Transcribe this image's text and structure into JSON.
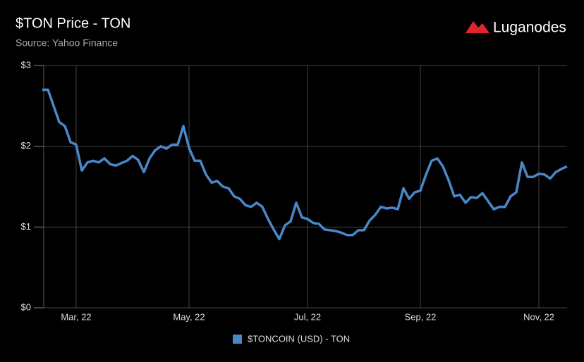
{
  "branding": {
    "name": "Luganodes"
  },
  "chart_data": {
    "type": "line",
    "title": "$TON Price - TON",
    "subtitle": "Source: Yahoo Finance",
    "categories": [
      null,
      null,
      null,
      null,
      null,
      null,
      "Mar, 22",
      null,
      null,
      null,
      null,
      null,
      null,
      null,
      null,
      null,
      null,
      null,
      null,
      null,
      null,
      null,
      null,
      null,
      null,
      null,
      "May, 22",
      null,
      null,
      null,
      null,
      null,
      null,
      null,
      null,
      null,
      null,
      null,
      null,
      null,
      null,
      null,
      null,
      null,
      null,
      null,
      null,
      "Jul, 22",
      null,
      null,
      null,
      null,
      null,
      null,
      null,
      null,
      null,
      null,
      null,
      null,
      null,
      null,
      null,
      null,
      null,
      null,
      null,
      "Sep, 22",
      null,
      null,
      null,
      null,
      null,
      null,
      null,
      null,
      null,
      null,
      null,
      null,
      null,
      null,
      null,
      null,
      null,
      null,
      null,
      null,
      "Nov, 22",
      null,
      null,
      null,
      null,
      null
    ],
    "series": [
      {
        "name": "$TONCOIN (USD) - TON",
        "color": "#4a87c8",
        "values": [
          2.7,
          2.7,
          2.5,
          2.3,
          2.25,
          2.05,
          2.02,
          1.7,
          1.8,
          1.82,
          1.8,
          1.85,
          1.78,
          1.76,
          1.79,
          1.82,
          1.88,
          1.83,
          1.68,
          1.85,
          1.95,
          2.0,
          1.97,
          2.02,
          2.02,
          2.25,
          1.98,
          1.82,
          1.82,
          1.65,
          1.55,
          1.57,
          1.5,
          1.48,
          1.38,
          1.35,
          1.27,
          1.25,
          1.3,
          1.25,
          1.1,
          0.97,
          0.85,
          1.02,
          1.07,
          1.3,
          1.12,
          1.1,
          1.05,
          1.04,
          0.97,
          0.96,
          0.95,
          0.93,
          0.9,
          0.9,
          0.96,
          0.96,
          1.08,
          1.15,
          1.25,
          1.23,
          1.24,
          1.22,
          1.48,
          1.35,
          1.43,
          1.45,
          1.65,
          1.82,
          1.85,
          1.75,
          1.58,
          1.38,
          1.4,
          1.3,
          1.37,
          1.36,
          1.42,
          1.32,
          1.22,
          1.25,
          1.25,
          1.38,
          1.43,
          1.8,
          1.62,
          1.62,
          1.66,
          1.65,
          1.6,
          1.68,
          1.72,
          1.75
        ]
      }
    ],
    "ylim": [
      0,
      3
    ],
    "yticks": [
      {
        "value": 0,
        "label": "$0"
      },
      {
        "value": 1,
        "label": "$1"
      },
      {
        "value": 2,
        "label": "$2"
      },
      {
        "value": 3,
        "label": "$3"
      }
    ],
    "grid": true,
    "legend": "bottom"
  }
}
